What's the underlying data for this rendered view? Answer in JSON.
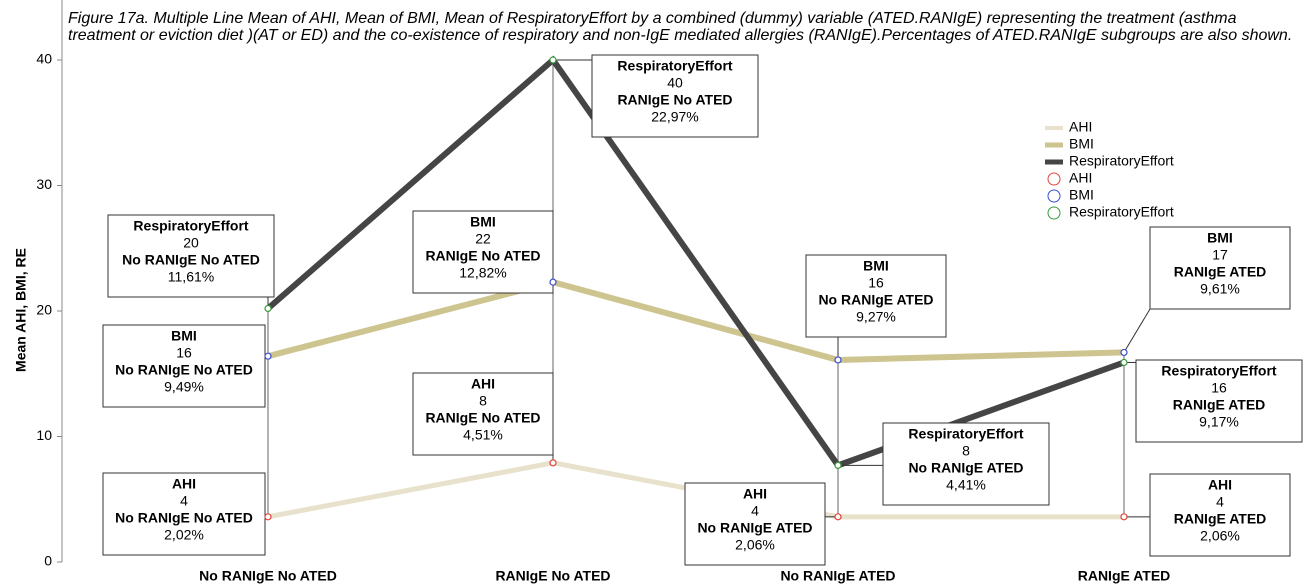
{
  "chart_data": {
    "type": "line",
    "title": "Figure 17a. Multiple Line Mean of AHI, Mean of BMI, Mean of RespiratoryEffort by a combined (dummy) variable (ATED.RANIgE) representing the treatment (asthma treatment or eviction diet )(AT or ED) and the co-existence of respiratory and non-IgE mediated allergies (RANIgE).Percentages of ATED.RANIgE subgroups are also shown.",
    "y_label": "Mean AHI, BMI, RE",
    "categories": [
      "No RANIgE No ATED",
      "RANIgE No ATED",
      "No RANIgE ATED",
      "RANIgE ATED"
    ],
    "ylim": [
      0,
      40
    ],
    "yticks": [
      0,
      10,
      20,
      30,
      40
    ],
    "series": [
      {
        "name": "AHI",
        "color": "#e8e1cb",
        "marker_color": "#e0453a",
        "values": [
          3.6,
          7.9,
          3.6,
          3.6
        ],
        "value_labels": [
          "4",
          "8",
          "4",
          "4"
        ],
        "percent_labels": [
          "2,02%",
          "4,51%",
          "2,06%",
          "2,06%"
        ]
      },
      {
        "name": "BMI",
        "color": "#cdc48f",
        "marker_color": "#3a4fd0",
        "values": [
          16.4,
          22.3,
          16.1,
          16.7
        ],
        "value_labels": [
          "16",
          "22",
          "16",
          "17"
        ],
        "percent_labels": [
          "9,49%",
          "12,82%",
          "9,27%",
          "9,61%"
        ]
      },
      {
        "name": "RespiratoryEffort",
        "color": "#454545",
        "marker_color": "#3a9a3a",
        "values": [
          20.2,
          40,
          7.7,
          15.9
        ],
        "value_labels": [
          "20",
          "40",
          "8",
          "16"
        ],
        "percent_labels": [
          "11,61%",
          "22,97%",
          "4,41%",
          "9,17%"
        ]
      }
    ]
  }
}
